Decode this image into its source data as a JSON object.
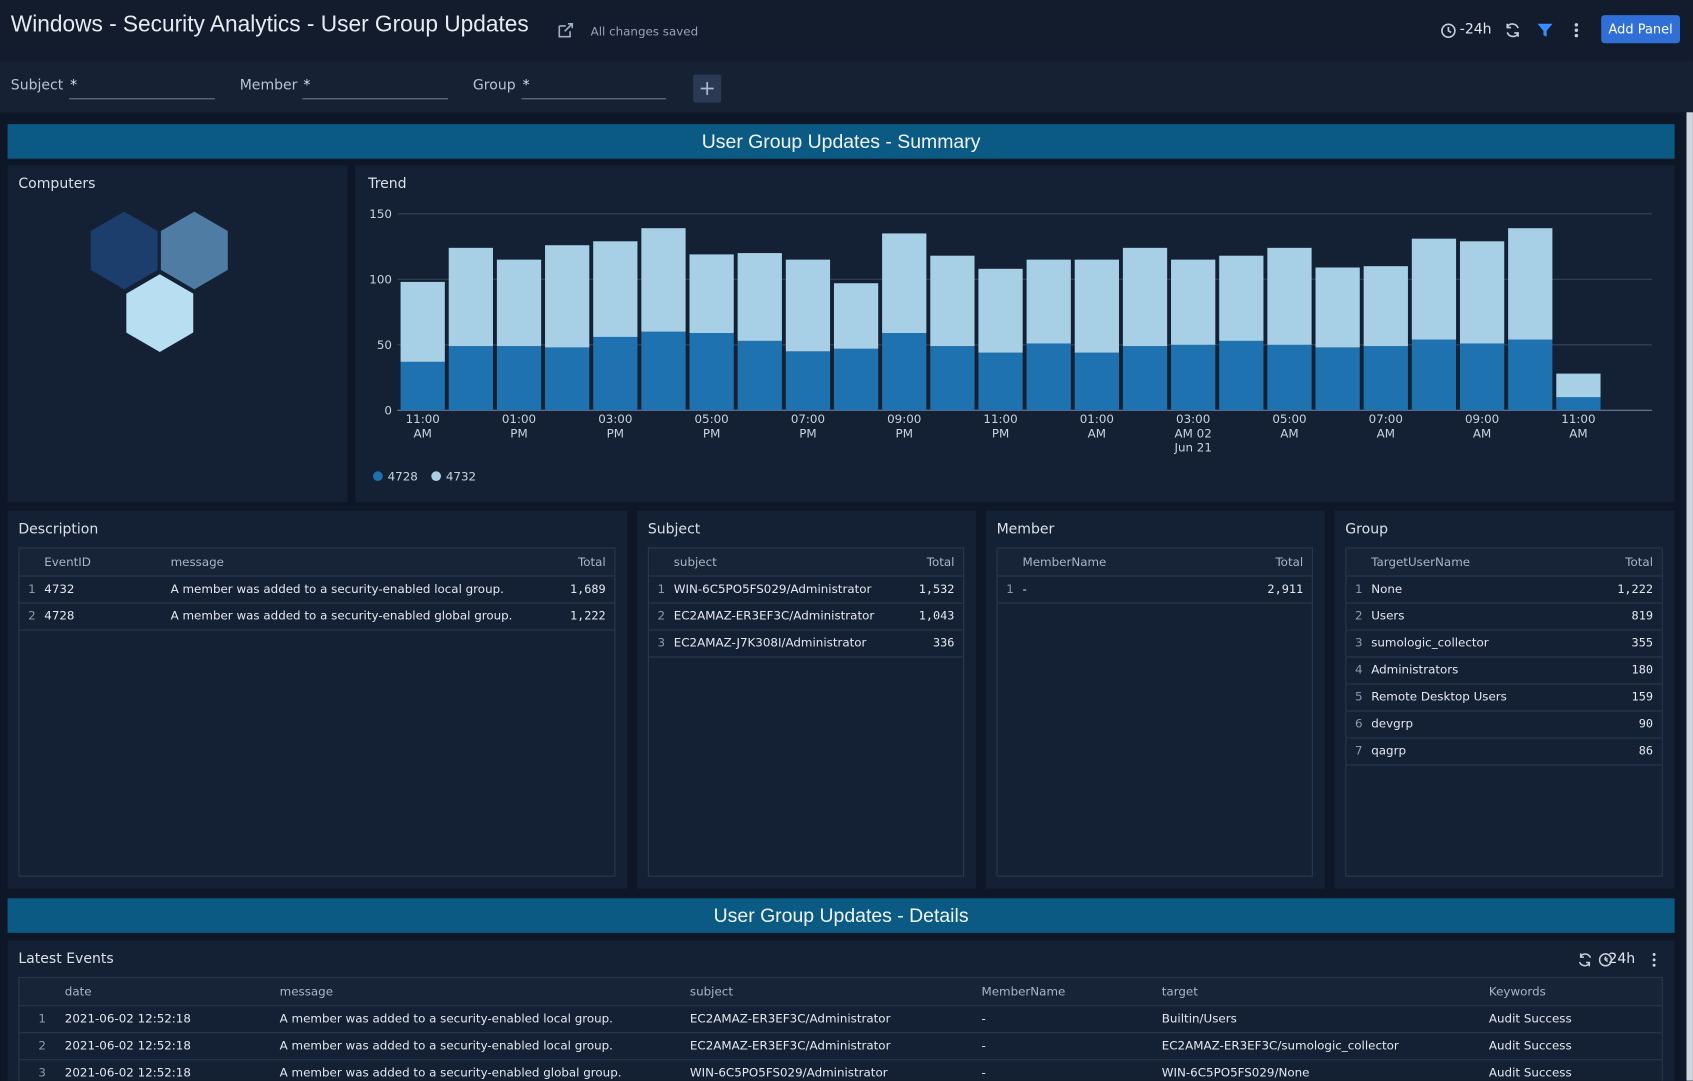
{
  "header": {
    "title": "Windows - Security Analytics - User Group Updates",
    "status": "All changes saved",
    "time_range": "-24h",
    "add_panel": "Add Panel"
  },
  "filters": [
    {
      "label": "Subject",
      "value": "*"
    },
    {
      "label": "Member",
      "value": "*"
    },
    {
      "label": "Group",
      "value": "*"
    }
  ],
  "sections": [
    "User Group Updates - Summary",
    "User Group Updates - Details"
  ],
  "computers_panel": {
    "title": "Computers"
  },
  "chart_data": {
    "type": "bar",
    "title": "Trend",
    "stacked": true,
    "categories": [
      "11:00 AM",
      null,
      "01:00 PM",
      null,
      "03:00 PM",
      null,
      "05:00 PM",
      null,
      "07:00 PM",
      null,
      "09:00 PM",
      null,
      "11:00 PM",
      null,
      "01:00 AM",
      null,
      "03:00 AM 02 Jun 21",
      null,
      "05:00 AM",
      null,
      "07:00 AM",
      null,
      "09:00 AM",
      null,
      "11:00 AM"
    ],
    "series": [
      {
        "name": "4728",
        "color": "#1f72b0",
        "values": [
          37,
          49,
          49,
          48,
          56,
          60,
          59,
          53,
          45,
          47,
          59,
          49,
          44,
          51,
          44,
          49,
          50,
          53,
          50,
          48,
          49,
          54,
          51,
          54,
          10
        ]
      },
      {
        "name": "4732",
        "color": "#a7d0e6",
        "values": [
          61,
          75,
          66,
          78,
          73,
          79,
          60,
          67,
          70,
          50,
          76,
          69,
          64,
          64,
          71,
          75,
          65,
          65,
          74,
          61,
          61,
          77,
          78,
          85,
          18
        ]
      }
    ],
    "ylim": [
      0,
      150
    ],
    "yticks": [
      0,
      50,
      100,
      150
    ],
    "grid": true,
    "legend": "bottom-left"
  },
  "tables": [
    {
      "title": "Description",
      "columns": [
        "EventID",
        "message",
        "Total"
      ],
      "rows": [
        [
          "1",
          "4732",
          "A member was added to a security-enabled local group.",
          "1,689"
        ],
        [
          "2",
          "4728",
          "A member was added to a security-enabled global group.",
          "1,222"
        ]
      ]
    },
    {
      "title": "Subject",
      "columns": [
        "subject",
        "Total"
      ],
      "rows": [
        [
          "1",
          "WIN-6C5PO5FS029/Administrator",
          "1,532"
        ],
        [
          "2",
          "EC2AMAZ-ER3EF3C/Administrator",
          "1,043"
        ],
        [
          "3",
          "EC2AMAZ-J7K308I/Administrator",
          "336"
        ]
      ]
    },
    {
      "title": "Member",
      "columns": [
        "MemberName",
        "Total"
      ],
      "rows": [
        [
          "1",
          "-",
          "2,911"
        ]
      ]
    },
    {
      "title": "Group",
      "columns": [
        "TargetUserName",
        "Total"
      ],
      "rows": [
        [
          "1",
          "None",
          "1,222"
        ],
        [
          "2",
          "Users",
          "819"
        ],
        [
          "3",
          "sumologic_collector",
          "355"
        ],
        [
          "4",
          "Administrators",
          "180"
        ],
        [
          "5",
          "Remote Desktop Users",
          "159"
        ],
        [
          "6",
          "devgrp",
          "90"
        ],
        [
          "7",
          "qagrp",
          "86"
        ]
      ]
    },
    {
      "title": "Latest Events",
      "time_range": "-24h",
      "columns": [
        "date",
        "message",
        "subject",
        "MemberName",
        "target",
        "Keywords"
      ],
      "rows": [
        [
          "1",
          "2021-06-02 12:52:18",
          "A member was added to a security-enabled local group.",
          "EC2AMAZ-ER3EF3C/Administrator",
          "-",
          "Builtin/Users",
          "Audit Success"
        ],
        [
          "2",
          "2021-06-02 12:52:18",
          "A member was added to a security-enabled local group.",
          "EC2AMAZ-ER3EF3C/Administrator",
          "-",
          "EC2AMAZ-ER3EF3C/sumologic_collector",
          "Audit Success"
        ],
        [
          "3",
          "2021-06-02 12:52:18",
          "A member was added to a security-enabled global group.",
          "WIN-6C5PO5FS029/Administrator",
          "-",
          "WIN-6C5PO5FS029/None",
          "Audit Success"
        ]
      ]
    }
  ]
}
